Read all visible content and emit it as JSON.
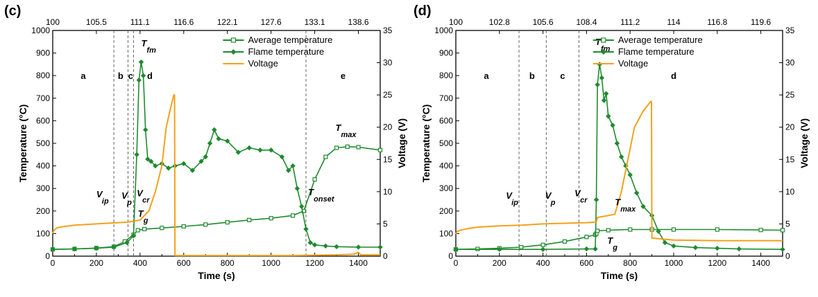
{
  "colors": {
    "temperature": "#1f8a2e",
    "voltage": "#f5a01a",
    "axis": "#000000",
    "dashed": "#555555"
  },
  "chart_data": [
    {
      "panel": "(c)",
      "type": "line",
      "xlabel": "Time (s)",
      "ylabel_left": "Temperature (°C)",
      "ylabel_right": "Voltage (V)",
      "xlim": [
        0,
        1500
      ],
      "ylim_left": [
        0,
        1000
      ],
      "ylim_right": [
        0,
        35
      ],
      "x_ticks": [
        0,
        200,
        400,
        600,
        800,
        1000,
        1200,
        1400
      ],
      "y_left_ticks": [
        0,
        100,
        200,
        300,
        400,
        500,
        600,
        700,
        800,
        900,
        1000
      ],
      "y_right_ticks": [
        0,
        5,
        10,
        15,
        20,
        25,
        30,
        35
      ],
      "top_ticks": [
        {
          "x": 0,
          "label": "100"
        },
        {
          "x": 200,
          "label": "105.5"
        },
        {
          "x": 400,
          "label": "111.1"
        },
        {
          "x": 600,
          "label": "116.6"
        },
        {
          "x": 800,
          "label": "122.1"
        },
        {
          "x": 1000,
          "label": "127.6"
        },
        {
          "x": 1200,
          "label": "133.1"
        },
        {
          "x": 1400,
          "label": "138.6"
        }
      ],
      "dividers": [
        280,
        345,
        370,
        1160
      ],
      "regions": [
        {
          "label": "a",
          "x": 140
        },
        {
          "label": "b",
          "x": 311
        },
        {
          "label": "c",
          "x": 357
        },
        {
          "label": "d",
          "x": 445
        },
        {
          "label": "e",
          "x": 1330
        }
      ],
      "legend": [
        "Average temperature",
        "Flame temperature",
        "Voltage"
      ],
      "series": [
        {
          "name": "Average temperature",
          "axis": "left",
          "marker": "square",
          "x": [
            0,
            100,
            200,
            280,
            330,
            370,
            390,
            420,
            500,
            600,
            700,
            800,
            900,
            1000,
            1100,
            1150,
            1200,
            1250,
            1300,
            1350,
            1400,
            1500
          ],
          "y": [
            30,
            32,
            36,
            42,
            65,
            95,
            115,
            120,
            125,
            132,
            140,
            150,
            160,
            168,
            180,
            200,
            340,
            440,
            480,
            485,
            483,
            470
          ]
        },
        {
          "name": "Flame temperature",
          "axis": "left",
          "marker": "diamond",
          "x": [
            0,
            100,
            200,
            280,
            340,
            370,
            385,
            395,
            405,
            415,
            425,
            435,
            450,
            470,
            500,
            530,
            560,
            600,
            640,
            680,
            700,
            720,
            740,
            760,
            800,
            850,
            900,
            950,
            1000,
            1050,
            1080,
            1100,
            1120,
            1140,
            1160,
            1180,
            1200,
            1250,
            1300,
            1400,
            1500
          ],
          "y": [
            30,
            32,
            35,
            40,
            60,
            90,
            450,
            780,
            860,
            800,
            560,
            430,
            420,
            400,
            410,
            390,
            400,
            410,
            380,
            420,
            440,
            500,
            560,
            520,
            510,
            460,
            480,
            470,
            470,
            440,
            380,
            400,
            300,
            220,
            120,
            60,
            50,
            45,
            42,
            40,
            40
          ]
        },
        {
          "name": "Voltage",
          "axis": "right",
          "marker": "none",
          "x": [
            0,
            5,
            20,
            50,
            100,
            200,
            300,
            350,
            400,
            440,
            470,
            500,
            520,
            540,
            555,
            558,
            560,
            700,
            900,
            1100,
            1300,
            1380,
            1400,
            1410,
            1500
          ],
          "y": [
            3.5,
            4.0,
            4.4,
            4.6,
            4.8,
            5.0,
            5.2,
            5.3,
            5.6,
            7.0,
            10.0,
            14.0,
            20.0,
            23.0,
            25.0,
            25.0,
            0.1,
            0.1,
            0.1,
            0.1,
            0.2,
            0.3,
            0.6,
            0.2,
            0.2
          ]
        }
      ],
      "annotations": [
        {
          "main": "T",
          "sub": "fm",
          "x": 405,
          "y_left": 930
        },
        {
          "main": "T",
          "sub": "max",
          "x": 1295,
          "y_left": 555
        },
        {
          "main": "T",
          "sub": "onset",
          "x": 1170,
          "y_left": 270
        },
        {
          "main": "T",
          "sub": "g",
          "x": 390,
          "y_left": 175
        },
        {
          "main": "V",
          "sub": "ip",
          "x": 200,
          "y_left": 260
        },
        {
          "main": "V",
          "sub": "p",
          "x": 315,
          "y_left": 255
        },
        {
          "main": "V",
          "sub": "cr",
          "x": 385,
          "y_left": 265
        }
      ]
    },
    {
      "panel": "(d)",
      "type": "line",
      "xlabel": "Time (s)",
      "ylabel_left": "Temperature (°C)",
      "ylabel_right": "Voltage (V)",
      "xlim": [
        0,
        1500
      ],
      "ylim_left": [
        0,
        1000
      ],
      "ylim_right": [
        0,
        35
      ],
      "x_ticks": [
        0,
        200,
        400,
        600,
        800,
        1000,
        1200,
        1400
      ],
      "y_left_ticks": [
        0,
        100,
        200,
        300,
        400,
        500,
        600,
        700,
        800,
        900,
        1000
      ],
      "y_right_ticks": [
        0,
        5,
        10,
        15,
        20,
        25,
        30,
        35
      ],
      "top_ticks": [
        {
          "x": 0,
          "label": "100"
        },
        {
          "x": 200,
          "label": "102.8"
        },
        {
          "x": 400,
          "label": "105.6"
        },
        {
          "x": 600,
          "label": "108.4"
        },
        {
          "x": 800,
          "label": "111.2"
        },
        {
          "x": 1000,
          "label": "114"
        },
        {
          "x": 1200,
          "label": "116.8"
        },
        {
          "x": 1400,
          "label": "119.6"
        }
      ],
      "dividers": [
        290,
        415,
        565
      ],
      "regions": [
        {
          "label": "a",
          "x": 140
        },
        {
          "label": "b",
          "x": 350
        },
        {
          "label": "c",
          "x": 490
        },
        {
          "label": "d",
          "x": 1000
        }
      ],
      "legend": [
        "Average temperature",
        "Flame temperature",
        "Voltage"
      ],
      "series": [
        {
          "name": "Average temperature",
          "axis": "left",
          "marker": "square",
          "x": [
            0,
            100,
            200,
            300,
            400,
            500,
            600,
            640,
            645,
            650,
            700,
            800,
            900,
            1000,
            1200,
            1400,
            1500
          ],
          "y": [
            30,
            32,
            35,
            40,
            50,
            65,
            85,
            95,
            100,
            112,
            115,
            118,
            118,
            118,
            118,
            116,
            115
          ]
        },
        {
          "name": "Flame temperature",
          "axis": "left",
          "marker": "diamond",
          "x": [
            0,
            200,
            400,
            600,
            640,
            645,
            650,
            660,
            670,
            680,
            690,
            700,
            720,
            740,
            760,
            780,
            800,
            830,
            860,
            900,
            930,
            960,
            1000,
            1100,
            1200,
            1300,
            1500
          ],
          "y": [
            30,
            30,
            30,
            32,
            32,
            250,
            760,
            850,
            790,
            690,
            720,
            620,
            580,
            500,
            440,
            400,
            360,
            280,
            220,
            180,
            110,
            60,
            45,
            38,
            35,
            32,
            30
          ]
        },
        {
          "name": "Voltage",
          "axis": "right",
          "marker": "none",
          "x": [
            0,
            5,
            20,
            60,
            100,
            200,
            300,
            400,
            500,
            600,
            645,
            650,
            700,
            730,
            760,
            790,
            820,
            860,
            895,
            898,
            900,
            1000,
            1200,
            1500
          ],
          "y": [
            3.4,
            3.8,
            4.0,
            4.3,
            4.5,
            4.7,
            4.8,
            5.0,
            5.1,
            5.2,
            5.3,
            6.0,
            6.3,
            6.5,
            10.0,
            15.0,
            20.0,
            22.5,
            24.0,
            24.0,
            2.8,
            2.5,
            2.4,
            2.4
          ]
        }
      ],
      "annotations": [
        {
          "main": "T",
          "sub": "fm",
          "x": 640,
          "y_left": 935
        },
        {
          "main": "T",
          "sub": "max",
          "x": 730,
          "y_left": 225
        },
        {
          "main": "T",
          "sub": "g",
          "x": 695,
          "y_left": 55
        },
        {
          "main": "V",
          "sub": "ip",
          "x": 230,
          "y_left": 255
        },
        {
          "main": "V",
          "sub": "p",
          "x": 410,
          "y_left": 255
        },
        {
          "main": "V",
          "sub": "cr",
          "x": 545,
          "y_left": 265
        }
      ]
    }
  ]
}
